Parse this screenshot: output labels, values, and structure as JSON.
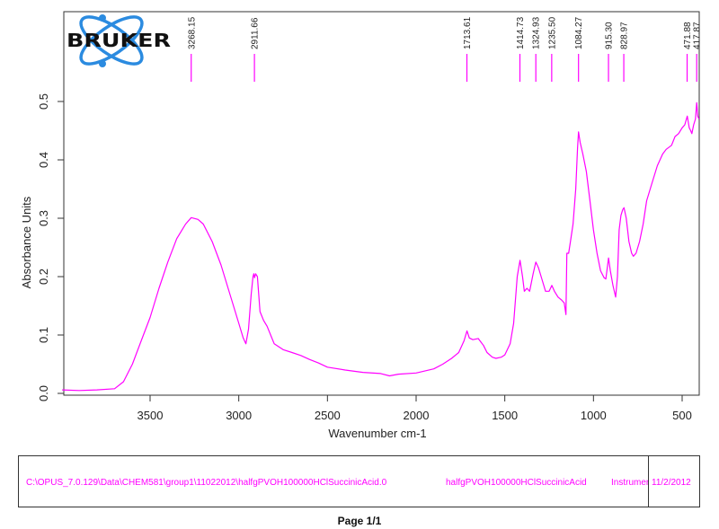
{
  "chart_data": {
    "type": "line",
    "title": "",
    "xlabel": "Wavenumber cm-1",
    "ylabel": "Absorbance Units",
    "xlim": [
      3996,
      405
    ],
    "ylim": [
      -0.003,
      0.655
    ],
    "x_reversed": true,
    "grid": false,
    "legend": "none",
    "x_ticks": [
      3500,
      3000,
      2500,
      2000,
      1500,
      1000,
      500
    ],
    "x_tick_labels": [
      "3500",
      "3000",
      "2500",
      "2000",
      "1500",
      "1000",
      "500"
    ],
    "y_ticks": [
      0.0,
      0.1,
      0.2,
      0.3,
      0.4,
      0.5
    ],
    "y_tick_labels": [
      "0.0",
      "0.1",
      "0.2",
      "0.3",
      "0.4",
      "0.5"
    ],
    "line_color": "#ff00ff",
    "peak_labels": [
      "3268.15",
      "2911.66",
      "1713.61",
      "1414.73",
      "1324.93",
      "1235.50",
      "1084.27",
      "915.30",
      "828.97",
      "471.88",
      "417.87"
    ],
    "peaks": [
      3268.15,
      2911.66,
      1713.61,
      1414.73,
      1324.93,
      1235.5,
      1084.27,
      915.3,
      828.97,
      471.88,
      417.87
    ],
    "series": [
      {
        "name": "halfgPVOH100000HClSuccinicAcid",
        "x": [
          3996,
          3900,
          3800,
          3700,
          3650,
          3600,
          3550,
          3500,
          3450,
          3400,
          3350,
          3300,
          3268,
          3230,
          3200,
          3150,
          3100,
          3050,
          3000,
          2975,
          2960,
          2945,
          2930,
          2920,
          2915,
          2911,
          2905,
          2895,
          2880,
          2860,
          2840,
          2800,
          2750,
          2700,
          2650,
          2600,
          2550,
          2500,
          2400,
          2300,
          2200,
          2150,
          2100,
          2000,
          1900,
          1850,
          1800,
          1760,
          1730,
          1713,
          1700,
          1680,
          1650,
          1620,
          1600,
          1570,
          1550,
          1520,
          1500,
          1470,
          1450,
          1430,
          1414,
          1400,
          1390,
          1375,
          1360,
          1340,
          1325,
          1310,
          1295,
          1270,
          1250,
          1235,
          1220,
          1200,
          1180,
          1165,
          1155,
          1150,
          1140,
          1130,
          1115,
          1100,
          1090,
          1084,
          1075,
          1060,
          1040,
          1020,
          1000,
          980,
          960,
          940,
          930,
          915,
          905,
          890,
          875,
          865,
          855,
          845,
          835,
          828,
          815,
          800,
          785,
          775,
          760,
          740,
          720,
          700,
          670,
          640,
          610,
          590,
          560,
          540,
          520,
          500,
          485,
          471,
          460,
          452,
          445,
          435,
          425,
          418,
          412,
          405
        ],
        "values": [
          0.006,
          0.005,
          0.006,
          0.008,
          0.02,
          0.05,
          0.09,
          0.13,
          0.18,
          0.225,
          0.265,
          0.29,
          0.301,
          0.298,
          0.29,
          0.26,
          0.22,
          0.17,
          0.12,
          0.095,
          0.085,
          0.11,
          0.17,
          0.2,
          0.205,
          0.198,
          0.205,
          0.2,
          0.14,
          0.125,
          0.115,
          0.085,
          0.075,
          0.07,
          0.065,
          0.058,
          0.052,
          0.045,
          0.04,
          0.036,
          0.034,
          0.03,
          0.033,
          0.035,
          0.042,
          0.05,
          0.06,
          0.07,
          0.09,
          0.107,
          0.095,
          0.092,
          0.094,
          0.082,
          0.07,
          0.062,
          0.06,
          0.062,
          0.066,
          0.085,
          0.12,
          0.2,
          0.228,
          0.2,
          0.175,
          0.18,
          0.175,
          0.205,
          0.225,
          0.215,
          0.2,
          0.175,
          0.175,
          0.185,
          0.175,
          0.165,
          0.16,
          0.155,
          0.135,
          0.24,
          0.24,
          0.26,
          0.29,
          0.35,
          0.42,
          0.448,
          0.43,
          0.41,
          0.38,
          0.33,
          0.28,
          0.24,
          0.21,
          0.198,
          0.196,
          0.232,
          0.21,
          0.185,
          0.165,
          0.2,
          0.28,
          0.305,
          0.315,
          0.318,
          0.3,
          0.26,
          0.24,
          0.235,
          0.24,
          0.26,
          0.29,
          0.33,
          0.36,
          0.39,
          0.41,
          0.418,
          0.425,
          0.44,
          0.445,
          0.455,
          0.46,
          0.475,
          0.455,
          0.45,
          0.445,
          0.46,
          0.47,
          0.498,
          0.475,
          0.47
        ]
      }
    ]
  },
  "logo": {
    "text": "BRUKER"
  },
  "footer": {
    "file_path": "C:\\OPUS_7.0.129\\Data\\CHEM581\\group1\\11022012\\halfgPVOH100000HClSuccinicAcid.0",
    "sample_name": "halfgPVOH100000HClSuccinicAcid",
    "instrument": "Instrumer",
    "date": "11/2/2012",
    "text_color": "#ff00ff"
  },
  "page": {
    "label": "Page 1/1"
  }
}
